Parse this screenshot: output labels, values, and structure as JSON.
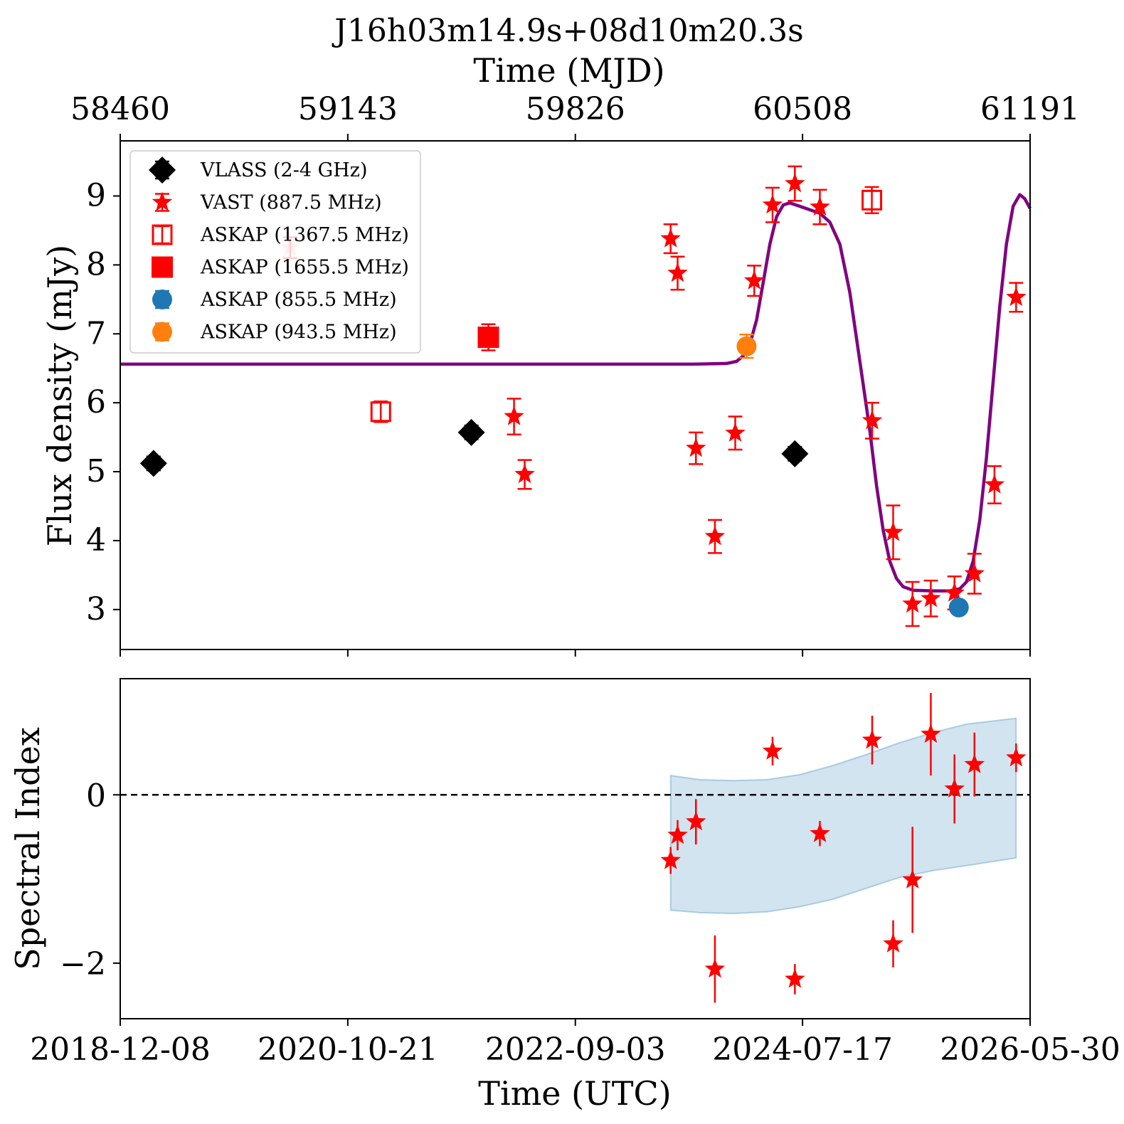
{
  "chart_data": [
    {
      "type": "scatter",
      "title": "J16h03m14.9s+08d10m20.3s",
      "top_xlabel": "Time (MJD)",
      "top_xticks": [
        "58460",
        "59143",
        "59826",
        "60508",
        "61191"
      ],
      "xlabel": "",
      "ylabel": "Flux density (mJy)",
      "yticks": [
        "3",
        "4",
        "5",
        "6",
        "7",
        "8",
        "9"
      ],
      "xlim_mjd": [
        58460,
        61191
      ],
      "ylim": [
        2.42,
        9.8
      ],
      "legend_position": "upper-left",
      "series": [
        {
          "name": "VLASS (2-4 GHz)",
          "marker": "diamond",
          "color": "#000000",
          "points": [
            {
              "x": 58560,
              "y": 5.12,
              "err": 0.1
            },
            {
              "x": 59514,
              "y": 5.57,
              "err": 0.1
            },
            {
              "x": 60485,
              "y": 5.26,
              "err": 0.1
            }
          ]
        },
        {
          "name": "VAST (887.5 MHz)",
          "marker": "star",
          "color": "#ff0000",
          "points": [
            {
              "x": 58970,
              "y": 8.25,
              "err": 0.15
            },
            {
              "x": 59642,
              "y": 5.8,
              "err": 0.26
            },
            {
              "x": 59674,
              "y": 4.96,
              "err": 0.21
            },
            {
              "x": 60112,
              "y": 8.38,
              "err": 0.21
            },
            {
              "x": 60133,
              "y": 7.88,
              "err": 0.24
            },
            {
              "x": 60188,
              "y": 5.34,
              "err": 0.23
            },
            {
              "x": 60245,
              "y": 4.06,
              "err": 0.24
            },
            {
              "x": 60306,
              "y": 5.56,
              "err": 0.24
            },
            {
              "x": 60363,
              "y": 7.77,
              "err": 0.22
            },
            {
              "x": 60418,
              "y": 8.87,
              "err": 0.25
            },
            {
              "x": 60485,
              "y": 9.18,
              "err": 0.25
            },
            {
              "x": 60560,
              "y": 8.84,
              "err": 0.25
            },
            {
              "x": 60717,
              "y": 5.74,
              "err": 0.26
            },
            {
              "x": 60780,
              "y": 4.12,
              "err": 0.39
            },
            {
              "x": 60838,
              "y": 3.08,
              "err": 0.32
            },
            {
              "x": 60893,
              "y": 3.16,
              "err": 0.26
            },
            {
              "x": 60964,
              "y": 3.24,
              "err": 0.24
            },
            {
              "x": 61024,
              "y": 3.52,
              "err": 0.29
            },
            {
              "x": 61084,
              "y": 4.81,
              "err": 0.27
            },
            {
              "x": 61149,
              "y": 7.53,
              "err": 0.21
            }
          ]
        },
        {
          "name": "ASKAP (1367.5 MHz)",
          "marker": "square-open",
          "color": "#ff0000",
          "points": [
            {
              "x": 59242,
              "y": 5.87,
              "err": 0.15
            },
            {
              "x": 60716,
              "y": 8.94,
              "err": 0.19
            }
          ]
        },
        {
          "name": "ASKAP (1655.5 MHz)",
          "marker": "square",
          "color": "#ff0000",
          "points": [
            {
              "x": 59565,
              "y": 6.95,
              "err": 0.19
            }
          ]
        },
        {
          "name": "ASKAP (855.5 MHz)",
          "marker": "circle",
          "color": "#1f77b4",
          "points": [
            {
              "x": 60977,
              "y": 3.03,
              "err": 0.06
            }
          ]
        },
        {
          "name": "ASKAP (943.5 MHz)",
          "marker": "circle",
          "color": "#ff7f0e",
          "points": [
            {
              "x": 60340,
              "y": 6.82,
              "err": 0.17
            }
          ]
        }
      ],
      "model_curve": {
        "color": "#800080",
        "points": [
          [
            58460,
            6.56
          ],
          [
            60180,
            6.56
          ],
          [
            60280,
            6.57
          ],
          [
            60310,
            6.6
          ],
          [
            60330,
            6.68
          ],
          [
            60350,
            6.85
          ],
          [
            60370,
            7.2
          ],
          [
            60390,
            7.75
          ],
          [
            60410,
            8.3
          ],
          [
            60430,
            8.7
          ],
          [
            60450,
            8.87
          ],
          [
            60470,
            8.9
          ],
          [
            60500,
            8.85
          ],
          [
            60530,
            8.8
          ],
          [
            60560,
            8.75
          ],
          [
            60590,
            8.62
          ],
          [
            60620,
            8.3
          ],
          [
            60650,
            7.6
          ],
          [
            60680,
            6.6
          ],
          [
            60710,
            5.6
          ],
          [
            60730,
            4.8
          ],
          [
            60750,
            4.15
          ],
          [
            60770,
            3.7
          ],
          [
            60790,
            3.45
          ],
          [
            60810,
            3.33
          ],
          [
            60840,
            3.28
          ],
          [
            60900,
            3.27
          ],
          [
            60950,
            3.27
          ],
          [
            60980,
            3.3
          ],
          [
            61000,
            3.4
          ],
          [
            61020,
            3.7
          ],
          [
            61040,
            4.3
          ],
          [
            61060,
            5.2
          ],
          [
            61080,
            6.3
          ],
          [
            61100,
            7.4
          ],
          [
            61120,
            8.3
          ],
          [
            61140,
            8.85
          ],
          [
            61160,
            9.02
          ],
          [
            61175,
            8.96
          ],
          [
            61191,
            8.82
          ]
        ]
      }
    },
    {
      "type": "scatter",
      "xlabel": "Time (UTC)",
      "xticks": [
        "2018-12-08",
        "2020-10-21",
        "2022-09-03",
        "2024-07-17",
        "2026-05-30"
      ],
      "ylabel": "Spectral Index",
      "yticks": [
        "−2",
        "0"
      ],
      "xlim_mjd": [
        58460,
        61191
      ],
      "ylim": [
        -2.66,
        1.38
      ],
      "reference_line_y": 0,
      "band": {
        "color": "#1f77b4",
        "upper": [
          [
            60112,
            0.23
          ],
          [
            60200,
            0.18
          ],
          [
            60300,
            0.17
          ],
          [
            60400,
            0.18
          ],
          [
            60500,
            0.24
          ],
          [
            60600,
            0.35
          ],
          [
            60700,
            0.48
          ],
          [
            60800,
            0.62
          ],
          [
            60900,
            0.74
          ],
          [
            61000,
            0.84
          ],
          [
            61149,
            0.91
          ]
        ],
        "lower": [
          [
            60112,
            -1.37
          ],
          [
            60200,
            -1.4
          ],
          [
            60300,
            -1.41
          ],
          [
            60400,
            -1.39
          ],
          [
            60500,
            -1.33
          ],
          [
            60600,
            -1.24
          ],
          [
            60700,
            -1.11
          ],
          [
            60800,
            -0.98
          ],
          [
            60900,
            -0.9
          ],
          [
            61000,
            -0.84
          ],
          [
            61149,
            -0.75
          ]
        ]
      },
      "series": [
        {
          "name": "",
          "marker": "star",
          "color": "#ff0000",
          "points": [
            {
              "x": 60112,
              "y": -0.78,
              "err": 0.16
            },
            {
              "x": 60133,
              "y": -0.48,
              "err": 0.18
            },
            {
              "x": 60188,
              "y": -0.32,
              "err": 0.27
            },
            {
              "x": 60245,
              "y": -2.07,
              "err": 0.4
            },
            {
              "x": 60418,
              "y": 0.52,
              "err": 0.17
            },
            {
              "x": 60485,
              "y": -2.19,
              "err": 0.18
            },
            {
              "x": 60560,
              "y": -0.46,
              "err": 0.15
            },
            {
              "x": 60717,
              "y": 0.65,
              "err": 0.29
            },
            {
              "x": 60780,
              "y": -1.77,
              "err": 0.28
            },
            {
              "x": 60838,
              "y": -1.01,
              "err": 0.63
            },
            {
              "x": 60893,
              "y": 0.72,
              "err": 0.49
            },
            {
              "x": 60964,
              "y": 0.07,
              "err": 0.41
            },
            {
              "x": 61024,
              "y": 0.36,
              "err": 0.38
            },
            {
              "x": 61149,
              "y": 0.44,
              "err": 0.17
            }
          ]
        }
      ]
    }
  ]
}
